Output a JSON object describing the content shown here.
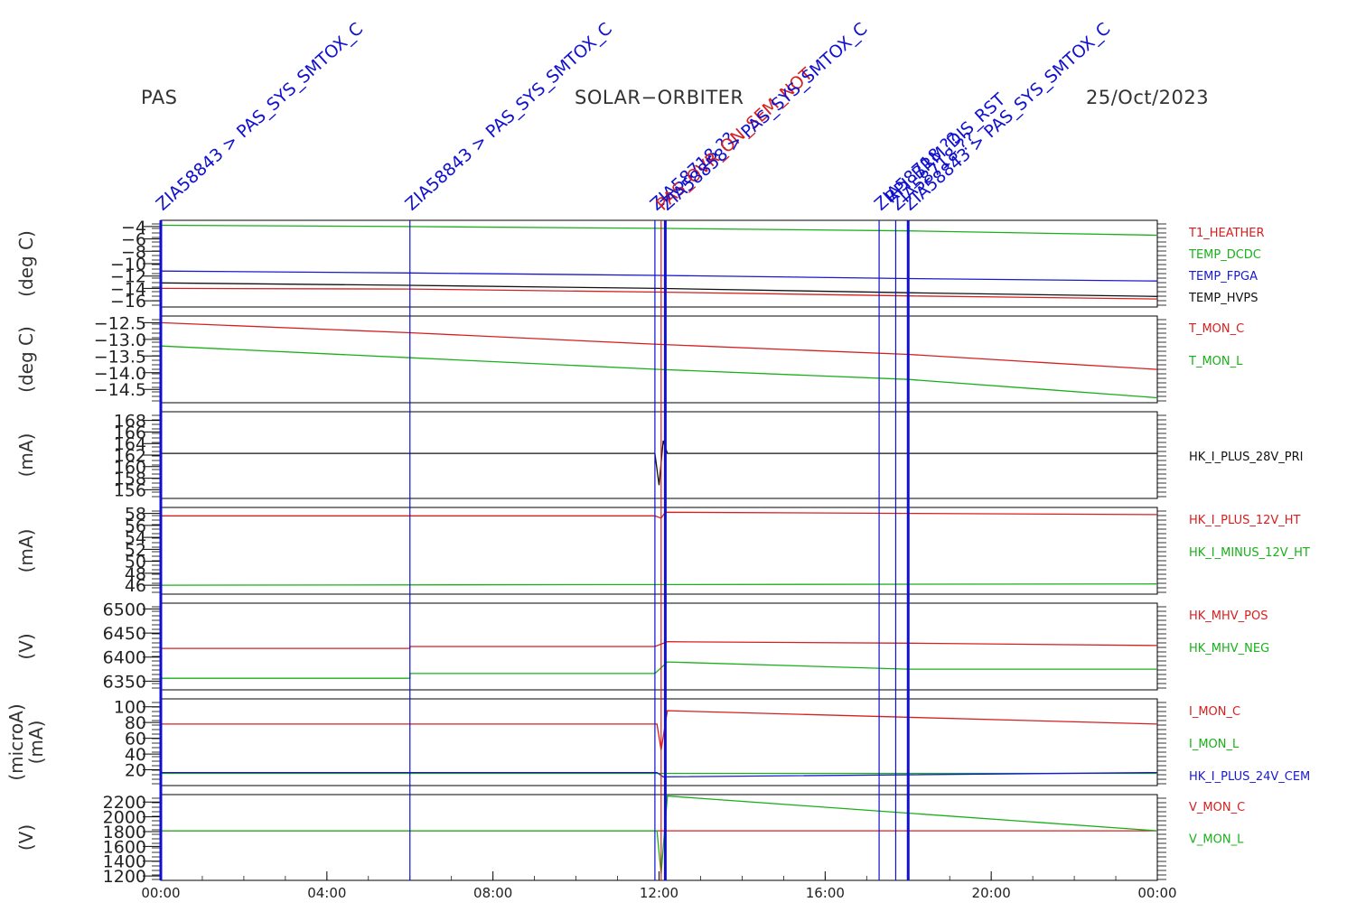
{
  "header": {
    "left": "PAS",
    "center": "SOLAR−ORBITER",
    "right": "25/Oct/2023"
  },
  "colors": {
    "red": "#d62020",
    "green": "#19b019",
    "blue": "#1a1acc",
    "black": "#111111",
    "event_blue": "#1010d0"
  },
  "chart_data": {
    "type": "line",
    "x_axis": {
      "ticks": [
        "00:00",
        "04:00",
        "08:00",
        "12:00",
        "16:00",
        "20:00",
        "00:00"
      ],
      "xlim_hours": [
        0,
        24
      ]
    },
    "events": [
      {
        "time_h": 0.0,
        "labels": [
          "ZIA58843 > PAS_SYS_SMTOX_C"
        ],
        "color": "blue"
      },
      {
        "time_h": 6.0,
        "labels": [
          "ZIA58843 > PAS_SYS_SMTOX_C"
        ],
        "color": "blue"
      },
      {
        "time_h": 11.9,
        "labels": [
          "ZIA58718 ??"
        ],
        "color": "blue"
      },
      {
        "time_h": 12.05,
        "labels": [
          "PAS_OVR_ON_SEM_NOT"
        ],
        "color": "red"
      },
      {
        "time_h": 12.15,
        "labels": [
          "ZIA58858 > PAS_SYS_SMTOX_C"
        ],
        "color": "blue"
      },
      {
        "time_h": 17.3,
        "labels": [
          "ZIA58718 ??",
          "RPI_BRM_DIS_RST"
        ],
        "color": "blue"
      },
      {
        "time_h": 17.7,
        "labels": [
          "ZIA58718 ??"
        ],
        "color": "blue"
      },
      {
        "time_h": 18.0,
        "labels": [
          "ZIA58843 > PAS_SYS_SMTOX_C"
        ],
        "color": "blue"
      }
    ],
    "panels": [
      {
        "ylabel": "(deg C)",
        "ticks": [
          "−4",
          "−6",
          "−8",
          "−10",
          "−12",
          "−14",
          "−16"
        ],
        "ylim": [
          -17,
          -3
        ],
        "series": [
          {
            "name": "T1_HEATHER",
            "color": "red",
            "x": [
              0,
              6,
              12,
              18,
              24
            ],
            "y": [
              -14.0,
              -14.1,
              -14.6,
              -15.2,
              -15.7
            ]
          },
          {
            "name": "TEMP_DCDC",
            "color": "green",
            "x": [
              0,
              6,
              12,
              18,
              24
            ],
            "y": [
              -3.8,
              -4.0,
              -4.3,
              -4.7,
              -5.4
            ]
          },
          {
            "name": "TEMP_FPGA",
            "color": "blue",
            "x": [
              0,
              6,
              12,
              18,
              24
            ],
            "y": [
              -11.2,
              -11.5,
              -11.9,
              -12.4,
              -12.8
            ]
          },
          {
            "name": "TEMP_HVPS",
            "color": "black",
            "x": [
              0,
              6,
              12,
              18,
              24
            ],
            "y": [
              -13.1,
              -13.5,
              -14.0,
              -14.7,
              -15.3
            ]
          }
        ]
      },
      {
        "ylabel": "(deg C)",
        "ticks": [
          "−12.5",
          "−13.0",
          "−13.5",
          "−14.0",
          "−14.5"
        ],
        "ylim": [
          -14.9,
          -12.3
        ],
        "series": [
          {
            "name": "T_MON_C",
            "color": "red",
            "x": [
              0,
              6,
              12,
              18,
              24
            ],
            "y": [
              -12.5,
              -12.8,
              -13.15,
              -13.45,
              -13.9
            ]
          },
          {
            "name": "T_MON_L",
            "color": "green",
            "x": [
              0,
              6,
              12,
              18,
              24
            ],
            "y": [
              -13.2,
              -13.55,
              -13.9,
              -14.2,
              -14.75
            ]
          }
        ]
      },
      {
        "ylabel": "(mA)",
        "ticks": [
          "168",
          "166",
          "164",
          "162",
          "160",
          "158",
          "156"
        ],
        "ylim": [
          154.5,
          169.5
        ],
        "series": [
          {
            "name": "HK_I_PLUS_28V_PRI",
            "color": "black",
            "x": [
              0,
              11.9,
              12.0,
              12.1,
              12.2,
              24
            ],
            "y": [
              162.3,
              162.3,
              156.8,
              164.5,
              162.3,
              162.3
            ]
          }
        ]
      },
      {
        "ylabel": "(mA)",
        "ticks": [
          "58",
          "56",
          "54",
          "52",
          "50",
          "48",
          "46"
        ],
        "ylim": [
          44.5,
          59.0
        ],
        "series": [
          {
            "name": "HK_I_PLUS_12V_HT",
            "color": "red",
            "x": [
              0,
              11.9,
              12.05,
              12.15,
              24
            ],
            "y": [
              57.6,
              57.6,
              57.2,
              58.2,
              57.8
            ]
          },
          {
            "name": "HK_I_MINUS_12V_HT",
            "color": "green",
            "x": [
              0,
              24
            ],
            "y": [
              46.0,
              46.2
            ]
          }
        ]
      },
      {
        "ylabel": "(V)",
        "ticks": [
          "6500",
          "6450",
          "6400",
          "6350"
        ],
        "ylim": [
          6332,
          6512
        ],
        "series": [
          {
            "name": "HK_MHV_POS",
            "color": "red",
            "x": [
              0,
              6,
              6.0,
              11.9,
              12.2,
              18,
              24
            ],
            "y": [
              6418,
              6418,
              6422,
              6422,
              6432,
              6429,
              6424
            ]
          },
          {
            "name": "HK_MHV_NEG",
            "color": "green",
            "x": [
              0,
              6,
              6.0,
              11.9,
              12.2,
              18,
              24
            ],
            "y": [
              6356,
              6356,
              6366,
              6366,
              6390,
              6375,
              6375
            ]
          }
        ]
      },
      {
        "ylabel": "(microA)\n(mA)",
        "ticks": [
          "100",
          "80",
          "60",
          "40",
          "20"
        ],
        "ylim": [
          0,
          110
        ],
        "series": [
          {
            "name": "I_MON_C",
            "color": "red",
            "x": [
              0,
              11.95,
              12.05,
              12.2,
              24
            ],
            "y": [
              78,
              78,
              45,
              95,
              78
            ]
          },
          {
            "name": "I_MON_L",
            "color": "green",
            "x": [
              0,
              24
            ],
            "y": [
              15.5,
              15.5
            ]
          },
          {
            "name": "HK_I_PLUS_24V_CEM",
            "color": "blue",
            "x": [
              0,
              11.95,
              12.1,
              24
            ],
            "y": [
              16.5,
              16.5,
              11,
              16.5
            ]
          }
        ]
      },
      {
        "ylabel": "(V)",
        "ticks": [
          "2200",
          "2000",
          "1800",
          "1600",
          "1400",
          "1200"
        ],
        "ylim": [
          1140,
          2300
        ],
        "series": [
          {
            "name": "V_MON_C",
            "color": "red",
            "x": [
              0,
              24
            ],
            "y": [
              1810,
              1810
            ]
          },
          {
            "name": "V_MON_L",
            "color": "green",
            "x": [
              0,
              11.95,
              12.05,
              12.2,
              24
            ],
            "y": [
              1810,
              1810,
              1230,
              2280,
              1810
            ]
          }
        ]
      }
    ]
  }
}
